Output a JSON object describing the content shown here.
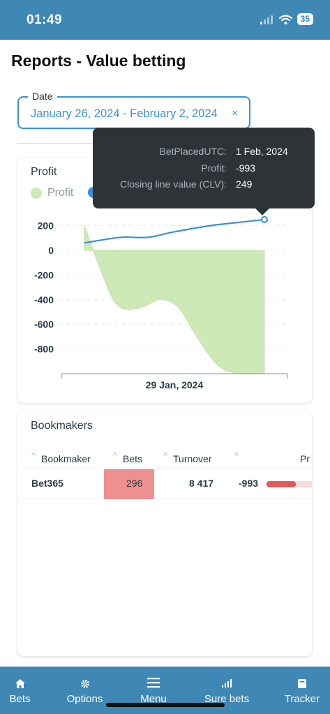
{
  "status_bar": {
    "time": "01:49",
    "battery": "35"
  },
  "page": {
    "title": "Reports - Value betting"
  },
  "date_filter": {
    "label": "Date",
    "value": "January 26, 2024 - February 2, 2024",
    "clear": "×"
  },
  "profit_card": {
    "title": "Profit",
    "legend": [
      {
        "name": "Profit",
        "color": "#cde9b8"
      },
      {
        "name": "",
        "color": "#3b8fd4"
      }
    ]
  },
  "tooltip": {
    "rows": [
      {
        "key": "BetPlacedUTC:",
        "value": "1 Feb, 2024"
      },
      {
        "key": "Profit:",
        "value": "-993"
      },
      {
        "key": "Closing line value (CLV):",
        "value": "249"
      }
    ]
  },
  "chart_data": {
    "type": "area",
    "title": "Profit",
    "xlabel": "",
    "ylabel": "",
    "x_ticks": [
      "29 Jan, 2024"
    ],
    "y_ticks": [
      "200",
      "0",
      "-200",
      "-400",
      "-600",
      "-800"
    ],
    "ylim": [
      -1000,
      250
    ],
    "series": [
      {
        "name": "Profit",
        "kind": "area",
        "color": "#cde9b8",
        "x": [
          0,
          0.08,
          0.18,
          0.3,
          0.42,
          0.52,
          0.62,
          0.74,
          0.86,
          1.0
        ],
        "values": [
          200,
          -120,
          -440,
          -470,
          -400,
          -460,
          -690,
          -930,
          -1000,
          -993
        ]
      },
      {
        "name": "Closing line value (CLV)",
        "kind": "line",
        "color": "#3b8fd4",
        "x": [
          0,
          0.2,
          0.35,
          0.5,
          0.7,
          0.85,
          1.0
        ],
        "values": [
          60,
          105,
          105,
          150,
          200,
          225,
          249
        ]
      }
    ],
    "highlight": {
      "series": 1,
      "index": 6
    }
  },
  "bookmakers": {
    "title": "Bookmakers",
    "columns": [
      "Bookmaker",
      "Bets",
      "Turnover",
      "",
      "Pr"
    ],
    "rows": [
      {
        "bookmaker": "Bet365",
        "bets": "296",
        "turnover": "8 417",
        "profit": "-993",
        "profit_ratio": 0.6
      }
    ],
    "bets_cell_color": "#ef8f90",
    "bar_color": "#e0595c"
  },
  "bottom_nav": {
    "items": [
      {
        "label": "Bets",
        "icon": "home-icon"
      },
      {
        "label": "Options",
        "icon": "gear-icon"
      },
      {
        "label": "Menu",
        "icon": "menu-icon"
      },
      {
        "label": "Sure bets",
        "icon": "signal-icon"
      },
      {
        "label": "Tracker",
        "icon": "book-icon"
      }
    ]
  }
}
